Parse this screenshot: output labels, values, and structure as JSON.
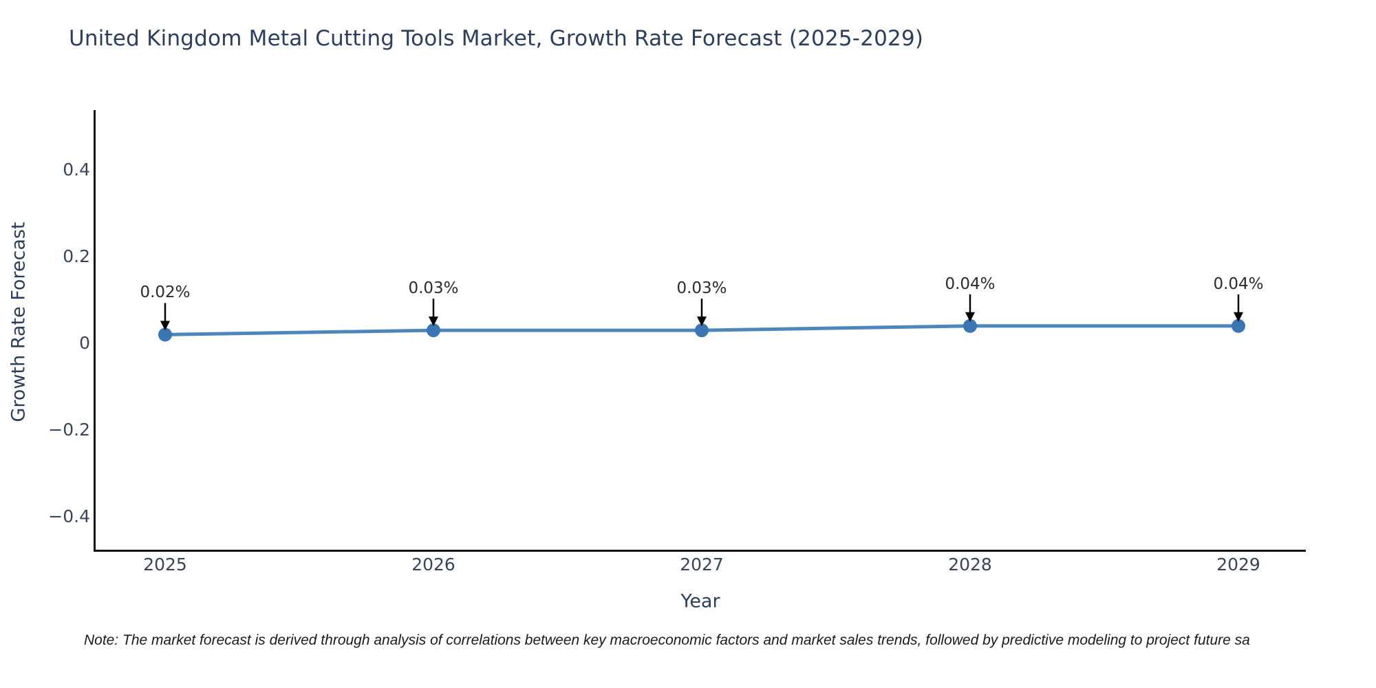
{
  "title": "United Kingdom Metal Cutting Tools Market, Growth Rate Forecast (2025-2029)",
  "note": "Note: The market forecast is derived through analysis of correlations between key macroeconomic factors and market sales trends, followed by predictive modeling to project future sa",
  "chart_data": {
    "type": "line",
    "title": "United Kingdom Metal Cutting Tools Market, Growth Rate Forecast (2025-2029)",
    "xlabel": "Year",
    "ylabel": "Growth Rate Forecast",
    "x": [
      2025,
      2026,
      2027,
      2028,
      2029
    ],
    "x_tick_labels": [
      "2025",
      "2026",
      "2027",
      "2028",
      "2029"
    ],
    "values": [
      0.02,
      0.03,
      0.03,
      0.04,
      0.04
    ],
    "point_labels": [
      "0.02%",
      "0.03%",
      "0.03%",
      "0.04%",
      "0.04%"
    ],
    "y_ticks": [
      0.4,
      0.2,
      0,
      -0.2,
      -0.4
    ],
    "y_tick_labels": [
      "0.4",
      "0.2",
      "0",
      "−0.2",
      "−0.4"
    ],
    "ylim": [
      -0.48,
      0.54
    ],
    "xlim": [
      2024.74,
      2029.25
    ],
    "grid": false,
    "legend": "none",
    "annotation_style": "down-arrow-to-point",
    "colors": {
      "line": "#4e86bb",
      "marker": "#3a76b4",
      "arrow": "#000000",
      "title_text": "#2a3f5f",
      "axis_text": "#36455a",
      "annotation_text": "#2b2b2b",
      "note_text": "#1a1a1a",
      "spine": "#111111"
    }
  }
}
